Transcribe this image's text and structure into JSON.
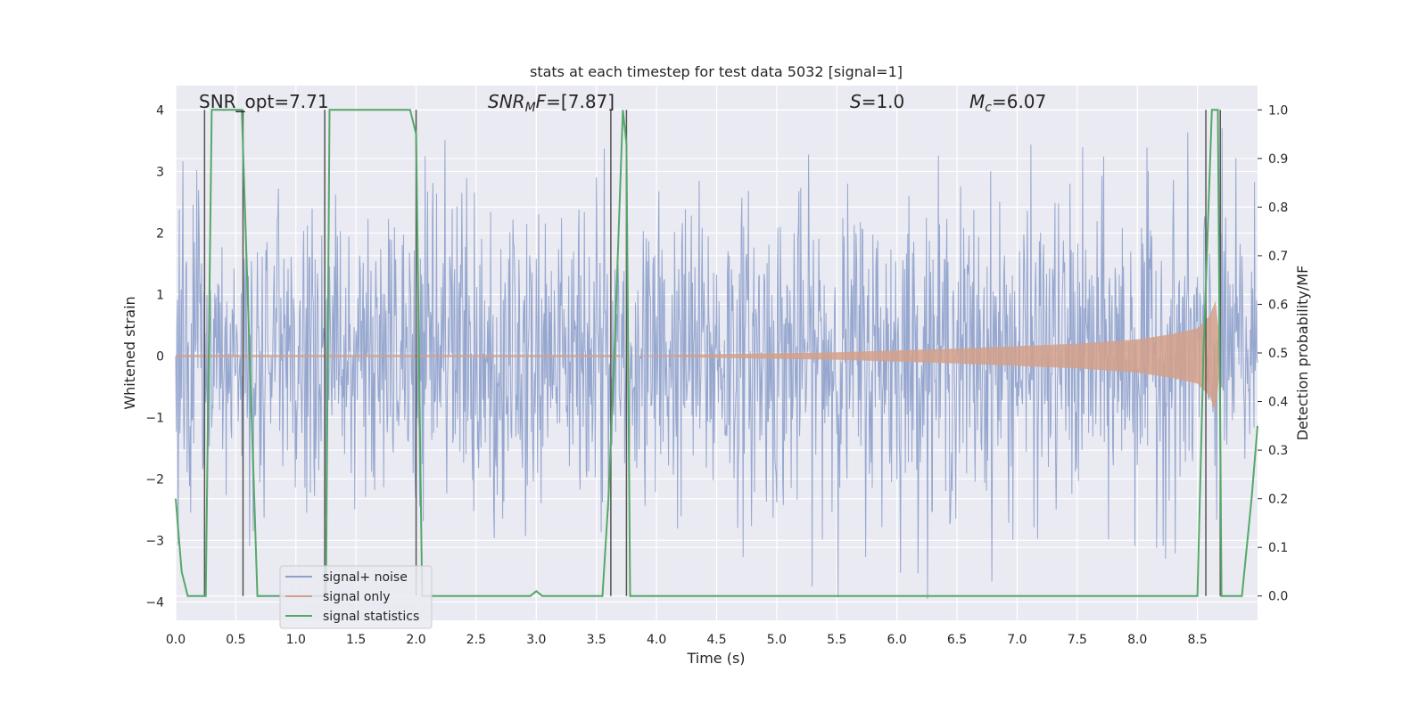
{
  "chart_data": {
    "type": "line",
    "title": "stats at each timestep for test data 5032 [signal=1]",
    "xlabel": "Time (s)",
    "ylabel": "Whitened strain",
    "ylabel_right": "Detection probability/MF",
    "xlim": [
      0,
      9.0
    ],
    "ylim": [
      -4.3,
      4.4
    ],
    "ylim_right": [
      -0.05,
      1.05
    ],
    "xticks": [
      "0.0",
      "0.5",
      "1.0",
      "1.5",
      "2.0",
      "2.5",
      "3.0",
      "3.5",
      "4.0",
      "4.5",
      "5.0",
      "5.5",
      "6.0",
      "6.5",
      "7.0",
      "7.5",
      "8.0",
      "8.5"
    ],
    "yticks_left": [
      "−4",
      "−3",
      "−2",
      "−1",
      "0",
      "1",
      "2",
      "3",
      "4"
    ],
    "yticks_right": [
      "0.0",
      "0.1",
      "0.2",
      "0.3",
      "0.4",
      "0.5",
      "0.6",
      "0.7",
      "0.8",
      "0.9",
      "1.0"
    ],
    "grid": true,
    "legend_position": "lower-left",
    "annotations": {
      "snr_opt": "SNR_opt=7.71",
      "snr_mf_prefix": "SNR",
      "snr_mf_sub": "M",
      "snr_mf_mid": "F",
      "snr_mf_value": "=[7.87]",
      "s_label": "S",
      "s_value": "=1.0",
      "mc_label": "M",
      "mc_sub": "c",
      "mc_value": "=6.07"
    },
    "series": [
      {
        "name": "signal+ noise",
        "color": "#8da0cb",
        "description_level": "noise envelope",
        "envelope_abs": 4.0
      },
      {
        "name": "signal only",
        "color": "#d4a08a",
        "chirp_times": [
          3.7,
          4.5,
          5.5,
          6.5,
          7.5,
          8.0,
          8.3,
          8.5,
          8.6,
          8.65,
          8.7
        ],
        "chirp_amplitudes": [
          0.0,
          0.03,
          0.06,
          0.12,
          0.2,
          0.27,
          0.36,
          0.45,
          0.65,
          0.9,
          0.0
        ]
      },
      {
        "name": "signal statistics",
        "color": "#55a868",
        "x": [
          0.0,
          0.05,
          0.1,
          0.25,
          0.3,
          0.5,
          0.55,
          0.68,
          0.7,
          0.8,
          1.25,
          1.28,
          1.3,
          1.95,
          2.0,
          2.05,
          2.2,
          2.95,
          3.0,
          3.05,
          3.55,
          3.6,
          3.65,
          3.72,
          3.75,
          3.78,
          3.81,
          8.5,
          8.55,
          8.62,
          8.67,
          8.7,
          8.75,
          8.8,
          8.87,
          8.95,
          9.0
        ],
        "y": [
          0.2,
          0.05,
          0.0,
          0.0,
          1.0,
          1.0,
          1.0,
          0.0,
          0.0,
          0.0,
          0.0,
          1.0,
          1.0,
          1.0,
          0.95,
          0.0,
          0.0,
          0.0,
          0.01,
          0.0,
          0.0,
          0.2,
          0.5,
          1.0,
          0.93,
          0.0,
          0.0,
          0.0,
          0.5,
          1.0,
          1.0,
          0.0,
          0.0,
          0.0,
          0.0,
          0.2,
          0.35
        ]
      }
    ],
    "vlines": [
      0.24,
      0.56,
      1.24,
      2.0,
      3.62,
      3.75,
      8.57,
      8.69
    ]
  }
}
